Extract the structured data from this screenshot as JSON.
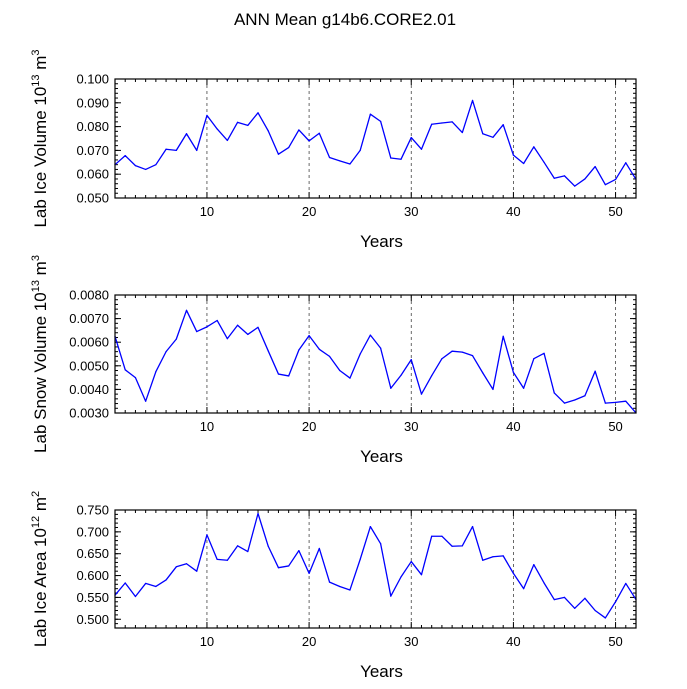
{
  "chart_data": [
    {
      "type": "line",
      "title": "ANN Mean g14b6.CORE2.01",
      "xlabel": "Years",
      "ylabel": {
        "prefix": "Lab Ice Volume 10",
        "exp": "13",
        "unit": " m",
        "unit_exp": "3"
      },
      "xlim": [
        1,
        52
      ],
      "ylim": [
        0.05,
        0.1
      ],
      "x_ticks": [
        10,
        20,
        30,
        40,
        50
      ],
      "y_ticks": [
        0.05,
        0.06,
        0.07,
        0.08,
        0.09,
        0.1
      ],
      "y_tick_labels": [
        "0.050",
        "0.060",
        "0.070",
        "0.080",
        "0.090",
        "0.100"
      ],
      "grid": "vertical dashed at major x ticks",
      "series_color": "#0000ff",
      "x": [
        1,
        2,
        3,
        4,
        5,
        6,
        7,
        8,
        9,
        10,
        11,
        12,
        13,
        14,
        15,
        16,
        17,
        18,
        19,
        20,
        21,
        22,
        23,
        24,
        25,
        26,
        27,
        28,
        29,
        30,
        31,
        32,
        33,
        34,
        35,
        36,
        37,
        38,
        39,
        40,
        41,
        42,
        43,
        44,
        45,
        46,
        47,
        48,
        49,
        50,
        51,
        52
      ],
      "values": [
        0.064,
        0.0678,
        0.0636,
        0.062,
        0.064,
        0.0705,
        0.07,
        0.077,
        0.07,
        0.0847,
        0.079,
        0.0742,
        0.0818,
        0.0805,
        0.0858,
        0.0782,
        0.0684,
        0.0712,
        0.0786,
        0.074,
        0.0772,
        0.067,
        0.0656,
        0.0643,
        0.07,
        0.0852,
        0.0822,
        0.0668,
        0.0663,
        0.0754,
        0.0705,
        0.081,
        0.0815,
        0.082,
        0.0775,
        0.091,
        0.077,
        0.0755,
        0.0808,
        0.068,
        0.0645,
        0.0715,
        0.065,
        0.0583,
        0.0593,
        0.055,
        0.058,
        0.0632,
        0.0556,
        0.0578,
        0.0648,
        0.0578
      ]
    },
    {
      "type": "line",
      "xlabel": "Years",
      "ylabel": {
        "prefix": "Lab Snow Volume 10",
        "exp": "13",
        "unit": " m",
        "unit_exp": "3"
      },
      "xlim": [
        1,
        52
      ],
      "ylim": [
        0.003,
        0.008
      ],
      "x_ticks": [
        10,
        20,
        30,
        40,
        50
      ],
      "y_ticks": [
        0.003,
        0.004,
        0.005,
        0.006,
        0.007,
        0.008
      ],
      "y_tick_labels": [
        "0.0030",
        "0.0040",
        "0.0050",
        "0.0060",
        "0.0070",
        "0.0080"
      ],
      "grid": "vertical dashed at major x ticks",
      "series_color": "#0000ff",
      "x": [
        1,
        2,
        3,
        4,
        5,
        6,
        7,
        8,
        9,
        10,
        11,
        12,
        13,
        14,
        15,
        16,
        17,
        18,
        19,
        20,
        21,
        22,
        23,
        24,
        25,
        26,
        27,
        28,
        29,
        30,
        31,
        32,
        33,
        34,
        35,
        36,
        37,
        38,
        39,
        40,
        41,
        42,
        43,
        44,
        45,
        46,
        47,
        48,
        49,
        50,
        51,
        52
      ],
      "values": [
        0.00625,
        0.00483,
        0.0045,
        0.0035,
        0.00475,
        0.0056,
        0.00613,
        0.00735,
        0.00645,
        0.00665,
        0.00692,
        0.00615,
        0.00672,
        0.00633,
        0.00663,
        0.00563,
        0.00465,
        0.00457,
        0.00567,
        0.00628,
        0.0057,
        0.0054,
        0.0048,
        0.00448,
        0.0055,
        0.0063,
        0.00575,
        0.00405,
        0.0046,
        0.00526,
        0.0038,
        0.00458,
        0.0053,
        0.00562,
        0.00558,
        0.00543,
        0.0047,
        0.004,
        0.00625,
        0.00472,
        0.00405,
        0.0053,
        0.00553,
        0.00385,
        0.00342,
        0.00355,
        0.00373,
        0.00477,
        0.00342,
        0.00345,
        0.0035,
        0.003
      ]
    },
    {
      "type": "line",
      "xlabel": "Years",
      "ylabel": {
        "prefix": "Lab Ice Area 10",
        "exp": "12",
        "unit": " m",
        "unit_exp": "2"
      },
      "xlim": [
        1,
        52
      ],
      "ylim": [
        0.48,
        0.75
      ],
      "x_ticks": [
        10,
        20,
        30,
        40,
        50
      ],
      "y_ticks": [
        0.5,
        0.55,
        0.6,
        0.65,
        0.7,
        0.75
      ],
      "y_tick_labels": [
        "0.500",
        "0.550",
        "0.600",
        "0.650",
        "0.700",
        "0.750"
      ],
      "grid": "vertical dashed at major x ticks",
      "series_color": "#0000ff",
      "x": [
        1,
        2,
        3,
        4,
        5,
        6,
        7,
        8,
        9,
        10,
        11,
        12,
        13,
        14,
        15,
        16,
        17,
        18,
        19,
        20,
        21,
        22,
        23,
        24,
        25,
        26,
        27,
        28,
        29,
        30,
        31,
        32,
        33,
        34,
        35,
        36,
        37,
        38,
        39,
        40,
        41,
        42,
        43,
        44,
        45,
        46,
        47,
        48,
        49,
        50,
        51,
        52
      ],
      "values": [
        0.555,
        0.583,
        0.552,
        0.582,
        0.575,
        0.59,
        0.62,
        0.627,
        0.61,
        0.693,
        0.637,
        0.635,
        0.668,
        0.655,
        0.742,
        0.667,
        0.618,
        0.622,
        0.657,
        0.605,
        0.662,
        0.585,
        0.575,
        0.567,
        0.637,
        0.712,
        0.673,
        0.553,
        0.597,
        0.632,
        0.602,
        0.69,
        0.69,
        0.667,
        0.668,
        0.712,
        0.635,
        0.643,
        0.645,
        0.605,
        0.57,
        0.625,
        0.583,
        0.545,
        0.55,
        0.525,
        0.548,
        0.52,
        0.503,
        0.54,
        0.582,
        0.545
      ]
    }
  ]
}
